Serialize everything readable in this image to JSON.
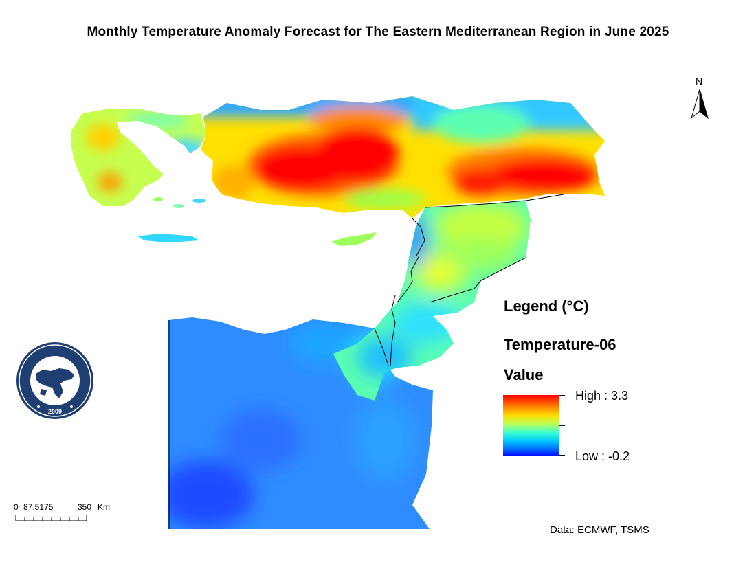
{
  "title": "Monthly Temperature Anomaly Forecast for The Eastern Mediterranean Region in June 2025",
  "north_arrow": {
    "label": "N",
    "icon": "north-arrow-icon"
  },
  "legend": {
    "heading": "Legend (°C)",
    "layer": "Temperature-06",
    "field": "Value",
    "high_label": "High : 3.3",
    "low_label": "Low : -0.2",
    "high_value": 3.3,
    "low_value": -0.2,
    "ramp_colors": [
      "#ff0000",
      "#ff7a00",
      "#ffe000",
      "#b9ff5a",
      "#3dffd0",
      "#00c8ff",
      "#0066ff",
      "#0010ff"
    ]
  },
  "scale_bar": {
    "labels": [
      "0",
      "87.5175",
      "350",
      "Km"
    ]
  },
  "credit": "Data: ECMWF, TSMS",
  "logo": {
    "icon": "emcc-logo-icon",
    "year": "2009"
  }
}
